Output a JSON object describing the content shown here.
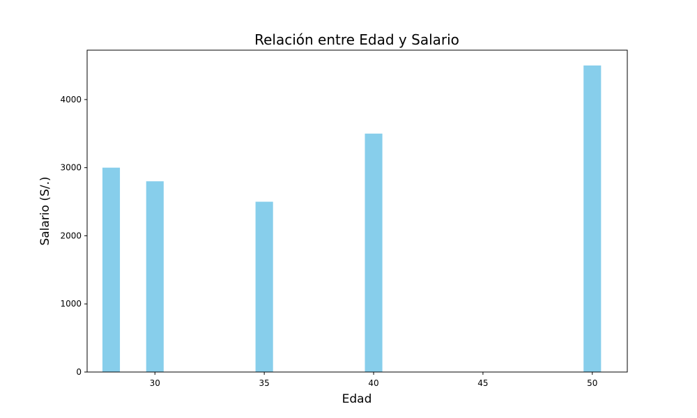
{
  "chart_data": {
    "type": "bar",
    "title": "Relación entre Edad y Salario",
    "xlabel": "Edad",
    "ylabel": "Salario (S/.)",
    "x": [
      28,
      30,
      35,
      40,
      50
    ],
    "values": [
      3000,
      2800,
      2500,
      3500,
      4500
    ],
    "bar_width": 0.8,
    "xlim": [
      26.9,
      51.6
    ],
    "ylim": [
      0,
      4725
    ],
    "xticks": [
      30,
      35,
      40,
      45,
      50
    ],
    "yticks": [
      0,
      1000,
      2000,
      3000,
      4000
    ],
    "bar_color": "#87CEEB",
    "grid": false,
    "legend": "none"
  }
}
